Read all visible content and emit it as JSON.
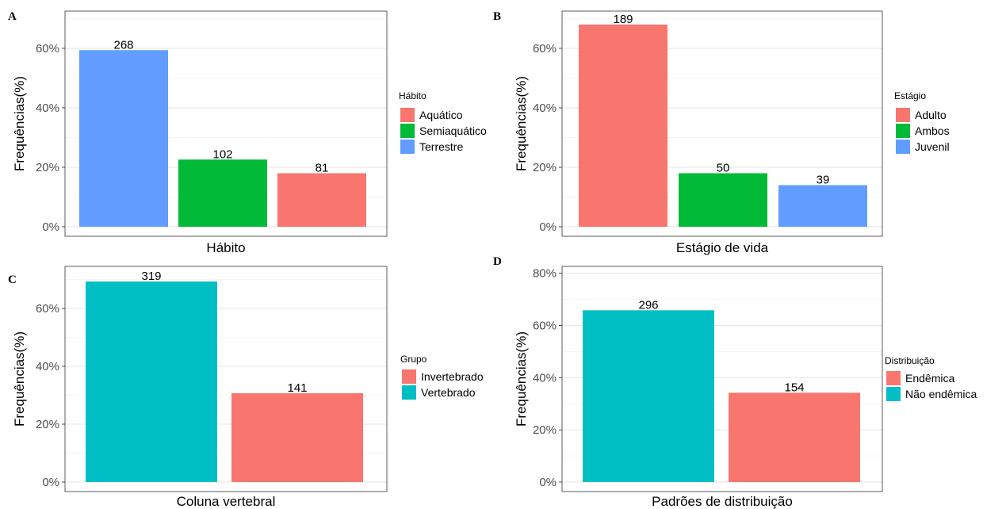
{
  "chart_data": [
    {
      "panel": "A",
      "type": "bar",
      "xlabel": "Hábito",
      "ylabel": "Frequências(%)",
      "ylim": [
        0,
        0.72
      ],
      "yticks": [
        0,
        0.2,
        0.4,
        0.6
      ],
      "ytick_labels": [
        "0%",
        "20%",
        "40%",
        "60%"
      ],
      "grid": true,
      "legend_position": "right",
      "legend": {
        "title": "Hábito",
        "items": [
          {
            "label": "Aquático",
            "color": "#F8766D"
          },
          {
            "label": "Semiaquático",
            "color": "#00BA38"
          },
          {
            "label": "Terrestre",
            "color": "#619CFF"
          }
        ]
      },
      "bars": [
        {
          "category": "Terrestre",
          "count": "268",
          "value": 0.594,
          "color": "#619CFF"
        },
        {
          "category": "Semiaquático",
          "count": "102",
          "value": 0.226,
          "color": "#00BA38"
        },
        {
          "category": "Aquático",
          "count": "81",
          "value": 0.18,
          "color": "#F8766D"
        }
      ]
    },
    {
      "panel": "B",
      "type": "bar",
      "xlabel": "Estágio de vida",
      "ylabel": "Frequências(%)",
      "ylim": [
        0,
        0.72
      ],
      "yticks": [
        0,
        0.2,
        0.4,
        0.6
      ],
      "ytick_labels": [
        "0%",
        "20%",
        "40%",
        "60%"
      ],
      "grid": true,
      "legend_position": "right",
      "legend": {
        "title": "Estágio",
        "items": [
          {
            "label": "Adulto",
            "color": "#F8766D"
          },
          {
            "label": "Ambos",
            "color": "#00BA38"
          },
          {
            "label": "Juvenil",
            "color": "#619CFF"
          }
        ]
      },
      "bars": [
        {
          "category": "Adulto",
          "count": "189",
          "value": 0.68,
          "color": "#F8766D"
        },
        {
          "category": "Ambos",
          "count": "50",
          "value": 0.18,
          "color": "#00BA38"
        },
        {
          "category": "Juvenil",
          "count": "39",
          "value": 0.14,
          "color": "#619CFF"
        }
      ]
    },
    {
      "panel": "C",
      "type": "bar",
      "xlabel": "Coluna vertebral",
      "ylabel": "Frequências(%)",
      "ylim": [
        0,
        0.74
      ],
      "yticks": [
        0,
        0.2,
        0.4,
        0.6
      ],
      "ytick_labels": [
        "0%",
        "20%",
        "40%",
        "60%"
      ],
      "grid": true,
      "legend_position": "right",
      "legend": {
        "title": "Grupo",
        "items": [
          {
            "label": "Invertebrado",
            "color": "#F8766D"
          },
          {
            "label": "Vertebrado",
            "color": "#00BFC4"
          }
        ]
      },
      "bars": [
        {
          "category": "Vertebrado",
          "count": "319",
          "value": 0.693,
          "color": "#00BFC4"
        },
        {
          "category": "Invertebrado",
          "count": "141",
          "value": 0.307,
          "color": "#F8766D"
        }
      ]
    },
    {
      "panel": "D",
      "type": "bar",
      "xlabel": "Padrões de distribuição",
      "ylabel": "Frequências(%)",
      "ylim": [
        0,
        0.82
      ],
      "yticks": [
        0,
        0.2,
        0.4,
        0.6,
        0.8
      ],
      "ytick_labels": [
        "0%",
        "20%",
        "40%",
        "60%",
        "80%"
      ],
      "grid": true,
      "legend_position": "right",
      "legend": {
        "title": "Distribuição",
        "items": [
          {
            "label": "Endêmica",
            "color": "#F8766D"
          },
          {
            "label": "Não endêmica",
            "color": "#00BFC4"
          }
        ]
      },
      "bars": [
        {
          "category": "Não endêmica",
          "count": "296",
          "value": 0.658,
          "color": "#00BFC4"
        },
        {
          "category": "Endêmica",
          "count": "154",
          "value": 0.342,
          "color": "#F8766D"
        }
      ]
    }
  ]
}
